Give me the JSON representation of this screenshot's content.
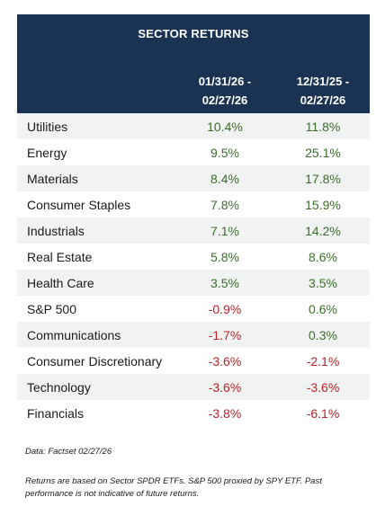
{
  "header": {
    "title": "SECTOR RETURNS",
    "col1_line1": "01/31/26 -",
    "col1_line2": "02/27/26",
    "col2_line1": "12/31/25 -",
    "col2_line2": "02/27/26"
  },
  "rows": [
    {
      "sector": "Utilities",
      "mtd": "10.4%",
      "ytd": "11.8%",
      "mtd_sign": "pos",
      "ytd_sign": "pos"
    },
    {
      "sector": "Energy",
      "mtd": "9.5%",
      "ytd": "25.1%",
      "mtd_sign": "pos",
      "ytd_sign": "pos"
    },
    {
      "sector": "Materials",
      "mtd": "8.4%",
      "ytd": "17.8%",
      "mtd_sign": "pos",
      "ytd_sign": "pos"
    },
    {
      "sector": "Consumer Staples",
      "mtd": "7.8%",
      "ytd": "15.9%",
      "mtd_sign": "pos",
      "ytd_sign": "pos"
    },
    {
      "sector": "Industrials",
      "mtd": "7.1%",
      "ytd": "14.2%",
      "mtd_sign": "pos",
      "ytd_sign": "pos"
    },
    {
      "sector": "Real Estate",
      "mtd": "5.8%",
      "ytd": "8.6%",
      "mtd_sign": "pos",
      "ytd_sign": "pos"
    },
    {
      "sector": "Health Care",
      "mtd": "3.5%",
      "ytd": "3.5%",
      "mtd_sign": "pos",
      "ytd_sign": "pos"
    },
    {
      "sector": "S&P 500",
      "mtd": "-0.9%",
      "ytd": "0.6%",
      "mtd_sign": "neg",
      "ytd_sign": "pos"
    },
    {
      "sector": "Communications",
      "mtd": "-1.7%",
      "ytd": "0.3%",
      "mtd_sign": "neg",
      "ytd_sign": "pos"
    },
    {
      "sector": "Consumer Discretionary",
      "mtd": "-3.6%",
      "ytd": "-2.1%",
      "mtd_sign": "neg",
      "ytd_sign": "neg"
    },
    {
      "sector": "Technology",
      "mtd": "-3.6%",
      "ytd": "-3.6%",
      "mtd_sign": "neg",
      "ytd_sign": "neg"
    },
    {
      "sector": "Financials",
      "mtd": "-3.8%",
      "ytd": "-6.1%",
      "mtd_sign": "neg",
      "ytd_sign": "neg"
    }
  ],
  "footer": {
    "source": "Data: Factset  02/27/26",
    "note": "Returns are based on Sector SPDR  ETFs. S&P 500 proxied by SPY ETF. Past performance is not indicative of future returns."
  },
  "colors": {
    "header_bg": "#1b3352",
    "positive": "#3b6e2b",
    "negative": "#b8232a",
    "row_alt": "#f1f2f2"
  }
}
